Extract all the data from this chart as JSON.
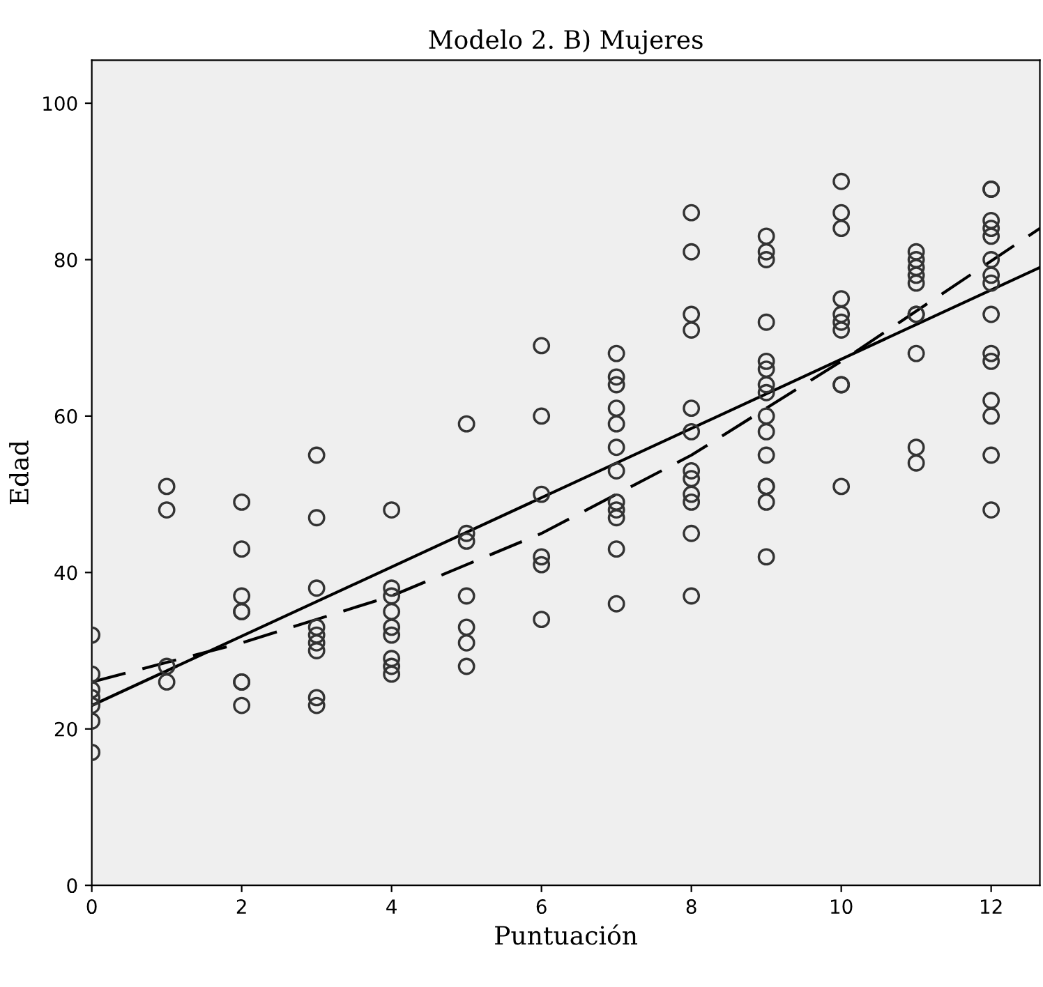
{
  "chart_data": {
    "type": "scatter",
    "title": "Modelo 2. B) Mujeres",
    "xlabel": "Puntuación",
    "ylabel": "Edad",
    "xlim": [
      0,
      12.65
    ],
    "ylim": [
      0,
      105.5
    ],
    "xticks": [
      0,
      2,
      4,
      6,
      8,
      10,
      12
    ],
    "yticks": [
      0,
      20,
      40,
      60,
      80,
      100
    ],
    "grid": false,
    "series": [
      {
        "color": "#333333",
        "marker": "circle",
        "x": [
          0,
          0,
          0,
          0,
          0,
          0,
          0,
          1,
          1,
          1,
          1,
          2,
          2,
          2,
          2,
          2,
          2,
          2,
          2,
          3,
          3,
          3,
          3,
          3,
          3,
          3,
          3,
          3,
          4,
          4,
          4,
          4,
          4,
          4,
          4,
          4,
          4,
          5,
          5,
          5,
          5,
          5,
          5,
          5,
          6,
          6,
          6,
          6,
          6,
          6,
          7,
          7,
          7,
          7,
          7,
          7,
          7,
          7,
          7,
          7,
          7,
          7,
          8,
          8,
          8,
          8,
          8,
          8,
          8,
          8,
          8,
          8,
          8,
          8,
          9,
          9,
          9,
          9,
          9,
          9,
          9,
          9,
          9,
          9,
          9,
          9,
          9,
          9,
          9,
          10,
          10,
          10,
          10,
          10,
          10,
          10,
          10,
          10,
          10,
          11,
          11,
          11,
          11,
          11,
          11,
          11,
          11,
          11,
          11,
          12,
          12,
          12,
          12,
          12,
          12,
          12,
          12,
          12,
          12,
          12,
          12,
          12,
          12,
          12
        ],
        "values": [
          32,
          27,
          25,
          24,
          23,
          21,
          17,
          51,
          48,
          28,
          26,
          49,
          43,
          37,
          35,
          35,
          26,
          26,
          23,
          55,
          47,
          38,
          33,
          32,
          31,
          30,
          24,
          23,
          48,
          38,
          37,
          35,
          33,
          32,
          29,
          28,
          27,
          59,
          45,
          44,
          37,
          33,
          31,
          28,
          69,
          60,
          50,
          42,
          41,
          34,
          68,
          65,
          64,
          61,
          59,
          56,
          53,
          49,
          48,
          47,
          43,
          36,
          86,
          81,
          73,
          71,
          61,
          58,
          53,
          52,
          50,
          49,
          45,
          37,
          83,
          81,
          80,
          72,
          67,
          66,
          64,
          63,
          60,
          58,
          55,
          51,
          51,
          49,
          42,
          90,
          86,
          84,
          75,
          73,
          72,
          71,
          64,
          64,
          51,
          81,
          80,
          79,
          78,
          77,
          73,
          73,
          68,
          56,
          54,
          89,
          89,
          85,
          84,
          83,
          80,
          78,
          77,
          73,
          68,
          67,
          62,
          60,
          55,
          48
        ]
      },
      {
        "type": "line",
        "color": "#000000",
        "line_style": "solid",
        "marker": "none",
        "x": [
          0,
          12.65
        ],
        "values": [
          23,
          79
        ]
      },
      {
        "type": "line",
        "color": "#000000",
        "line_style": "dashed",
        "marker": "none",
        "x": [
          0,
          2,
          4,
          6,
          8,
          10,
          12.65
        ],
        "values": [
          26,
          31,
          37,
          45,
          55,
          67,
          84
        ]
      }
    ]
  }
}
